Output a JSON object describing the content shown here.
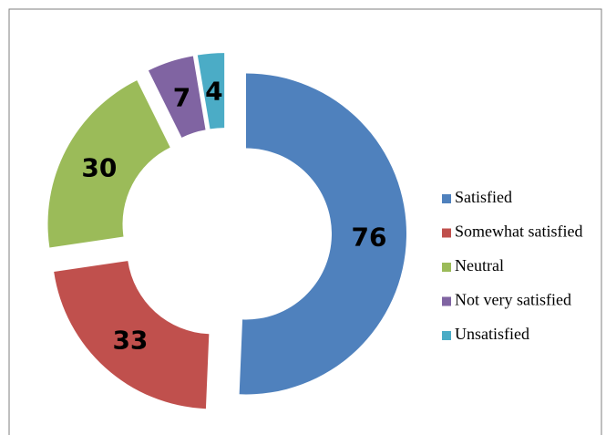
{
  "chart_data": {
    "type": "donut",
    "categories": [
      "Satisfied",
      "Somewhat satisfied",
      "Neutral",
      "Not very satisfied",
      "Unsatisfied"
    ],
    "values": [
      76,
      33,
      30,
      7,
      4
    ],
    "colors": [
      "#4f81bd",
      "#c0504d",
      "#9bbb59",
      "#8064a2",
      "#4bacc6"
    ],
    "legend": "right"
  }
}
